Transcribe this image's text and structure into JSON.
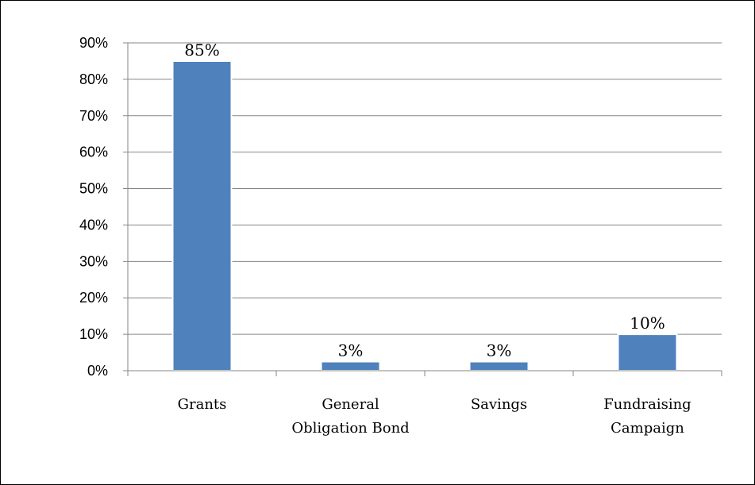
{
  "chart_data": {
    "type": "bar",
    "title": "",
    "categories": [
      "Grants",
      "General Obligation Bond",
      "Savings",
      "Fundraising Campaign"
    ],
    "category_lines": [
      [
        "Grants"
      ],
      [
        "General",
        "Obligation Bond"
      ],
      [
        "Savings"
      ],
      [
        "Fundraising",
        "Campaign"
      ]
    ],
    "values": [
      85,
      2.5,
      2.5,
      10
    ],
    "data_labels": [
      "85%",
      "3%",
      "3%",
      "10%"
    ],
    "ylim": [
      0,
      90
    ],
    "yticks": [
      0,
      10,
      20,
      30,
      40,
      50,
      60,
      70,
      80,
      90
    ],
    "ytick_labels": [
      "0%",
      "10%",
      "20%",
      "30%",
      "40%",
      "50%",
      "60%",
      "70%",
      "80%",
      "90%"
    ],
    "xlabel": "",
    "ylabel": "",
    "grid": true,
    "legend": "none",
    "colors": {
      "bar": "#4F81BD",
      "gridline": "#868686",
      "axis": "#868686",
      "border": "#000000"
    }
  }
}
